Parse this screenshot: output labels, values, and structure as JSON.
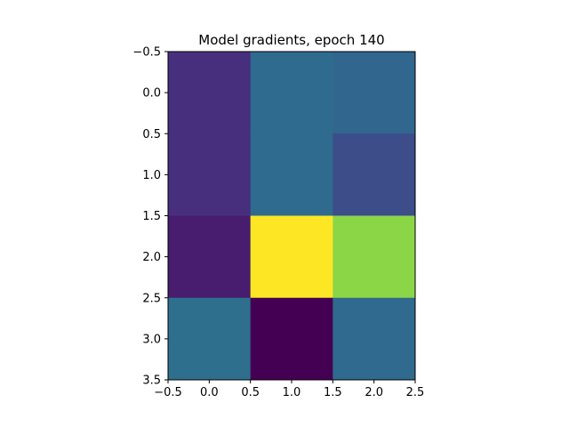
{
  "chart_data": {
    "type": "heatmap",
    "title": "Model gradients, epoch 140",
    "xlabel": "",
    "ylabel": "",
    "xlim": [
      -0.5,
      2.5
    ],
    "ylim": [
      3.5,
      -0.5
    ],
    "xticks": [
      -0.5,
      0.0,
      0.5,
      1.0,
      1.5,
      2.0,
      2.5
    ],
    "xtick_labels": [
      "−0.5",
      "0.0",
      "0.5",
      "1.0",
      "1.5",
      "2.0",
      "2.5"
    ],
    "yticks": [
      -0.5,
      0.0,
      0.5,
      1.0,
      1.5,
      2.0,
      2.5,
      3.0,
      3.5
    ],
    "ytick_labels": [
      "−0.5",
      "0.0",
      "0.5",
      "1.0",
      "1.5",
      "2.0",
      "2.5",
      "3.0",
      "3.5"
    ],
    "colormap": "viridis",
    "grid": false,
    "rows": 4,
    "cols": 3,
    "values": [
      [
        0.1,
        0.38,
        0.34
      ],
      [
        0.1,
        0.38,
        0.22
      ],
      [
        0.04,
        1.0,
        0.8
      ],
      [
        0.42,
        0.0,
        0.36
      ]
    ],
    "cell_colors": [
      [
        "#472f7d",
        "#2f6b8e",
        "#31668e"
      ],
      [
        "#472f7d",
        "#2f6b8e",
        "#3c4d8a"
      ],
      [
        "#481c6e",
        "#fde725",
        "#8bd646"
      ],
      [
        "#2e6f8e",
        "#440154",
        "#306a8e"
      ]
    ]
  }
}
